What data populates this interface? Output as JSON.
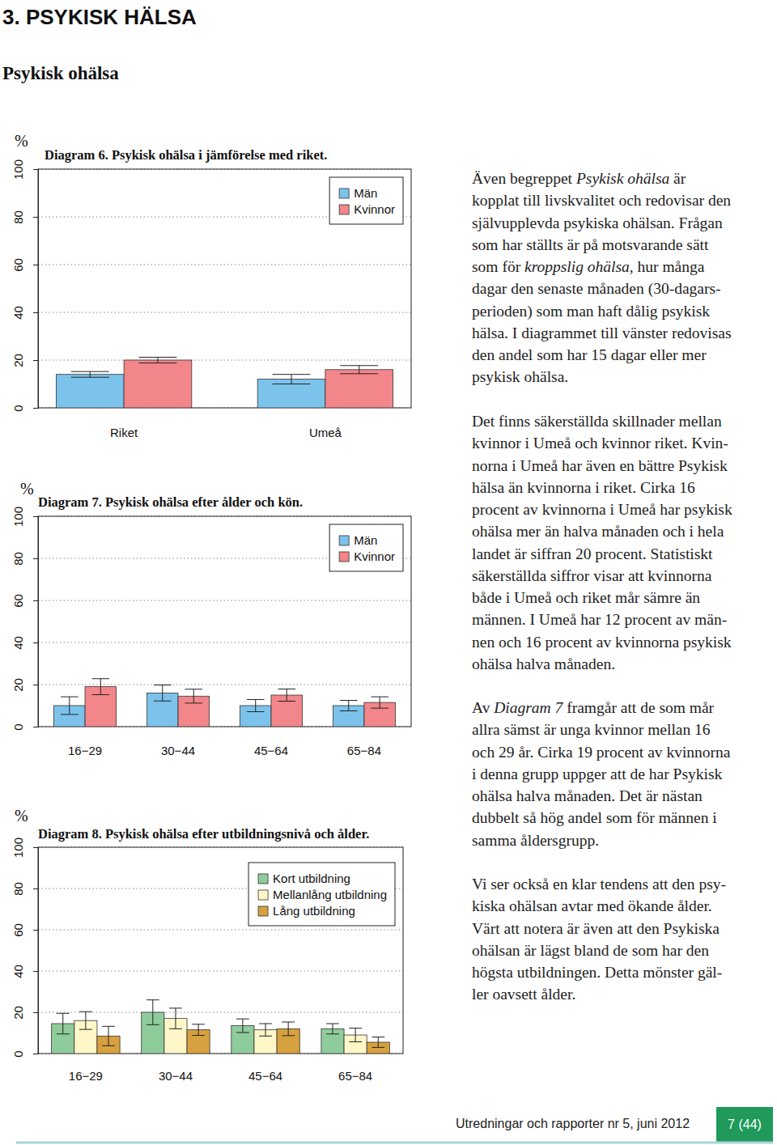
{
  "heading": "3. PSYKISK HÄLSA",
  "subheading": "Psykisk ohälsa",
  "chart_data": [
    {
      "type": "bar",
      "title": "Diagram 6. Psykisk ohälsa i jämförelse med riket.",
      "y_label": "%",
      "categories": [
        "Riket",
        "Umeå"
      ],
      "series": [
        {
          "name": "Män",
          "color": "#7cc3ec",
          "values": [
            14,
            12
          ],
          "errors": [
            1.2,
            2
          ]
        },
        {
          "name": "Kvinnor",
          "color": "#f2868a",
          "values": [
            20,
            16
          ],
          "errors": [
            1.2,
            1.7
          ]
        }
      ],
      "ylim": [
        0,
        100
      ],
      "yticks": [
        0,
        20,
        40,
        60,
        80,
        100
      ],
      "grid": true,
      "legend": "top-right"
    },
    {
      "type": "bar",
      "title": "Diagram 7. Psykisk ohälsa efter ålder och kön.",
      "y_label": "%",
      "categories": [
        "16−29",
        "30−44",
        "45−64",
        "65−84"
      ],
      "series": [
        {
          "name": "Män",
          "color": "#7cc3ec",
          "values": [
            10,
            16,
            10,
            10
          ],
          "errors": [
            4.2,
            3.8,
            2.9,
            2.5
          ]
        },
        {
          "name": "Kvinnor",
          "color": "#f2868a",
          "values": [
            19,
            14.5,
            15,
            11.5
          ],
          "errors": [
            3.8,
            3.3,
            2.9,
            2.7
          ]
        }
      ],
      "ylim": [
        0,
        100
      ],
      "yticks": [
        0,
        20,
        40,
        60,
        80,
        100
      ],
      "grid": true,
      "legend": "top-right"
    },
    {
      "type": "bar",
      "title": "Diagram 8. Psykisk ohälsa efter utbildningsnivå och ålder.",
      "y_label": "%",
      "categories": [
        "16−29",
        "30−44",
        "45−64",
        "65−84"
      ],
      "series": [
        {
          "name": "Kort utbildning",
          "color": "#8fcc9b",
          "values": [
            14.5,
            20,
            13.5,
            12
          ],
          "errors": [
            5,
            6,
            3.3,
            2.5
          ]
        },
        {
          "name": "Mellanlång utbildning",
          "color": "#fff7c8",
          "values": [
            16,
            17,
            11.5,
            9
          ],
          "errors": [
            4.3,
            5,
            3,
            3.3
          ]
        },
        {
          "name": "Lång utbildning",
          "color": "#d7a13f",
          "values": [
            8.5,
            11.5,
            12,
            5.5
          ],
          "errors": [
            4.7,
            2.7,
            3.3,
            2.5
          ]
        }
      ],
      "ylim": [
        0,
        100
      ],
      "yticks": [
        0,
        20,
        40,
        60,
        80,
        100
      ],
      "grid": true,
      "legend": "top-right"
    }
  ],
  "text": [
    {
      "lines": [
        [
          "Även begreppet ",
          {
            "text": "Psykisk ohälsa",
            "style": "italic"
          },
          " är"
        ],
        [
          "kopplat till livskvalitet och redovisar den"
        ],
        [
          "självupplevda psykiska ohälsan. Frågan"
        ],
        [
          "som har ställts är på motsvarande sätt"
        ],
        [
          "som för ",
          {
            "text": "kroppslig ohälsa",
            "style": "italic"
          },
          ", hur många"
        ],
        [
          "dagar den senaste månaden (30-dagars-"
        ],
        [
          "perioden) som man haft dålig psykisk"
        ],
        [
          "hälsa. I diagrammet till vänster redovisas"
        ],
        [
          "den andel som har 15 dagar eller mer"
        ],
        [
          "psykisk ohälsa."
        ]
      ]
    },
    {
      "lines": [
        [
          "Det finns säkerställda skillnader mellan"
        ],
        [
          "kvinnor i Umeå och kvinnor riket. Kvin-"
        ],
        [
          "norna i Umeå har även en bättre Psykisk"
        ],
        [
          "hälsa än kvinnorna i riket. Cirka 16"
        ],
        [
          "procent av kvinnorna i Umeå har psykisk"
        ],
        [
          "ohälsa mer än halva månaden och i hela"
        ],
        [
          "landet är siffran 20 procent. Statistiskt"
        ],
        [
          "säkerställda siffror visar att kvinnorna"
        ],
        [
          "både i Umeå och riket mår sämre än"
        ],
        [
          "männen. I Umeå har 12 procent av män-"
        ],
        [
          "nen och 16 procent av kvinnorna psykisk"
        ],
        [
          "ohälsa halva månaden."
        ]
      ]
    },
    {
      "lines": [
        [
          "Av ",
          {
            "text": "Diagram 7",
            "style": "italic"
          },
          " framgår att de som mår"
        ],
        [
          "allra sämst är unga kvinnor mellan 16"
        ],
        [
          "och 29 år. Cirka 19 procent av kvinnorna"
        ],
        [
          "i denna grupp uppger att de har Psykisk"
        ],
        [
          "ohälsa halva månaden. Det är nästan"
        ],
        [
          "dubbelt så hög andel som för männen i"
        ],
        [
          "samma åldersgrupp."
        ]
      ]
    },
    {
      "lines": [
        [
          "Vi ser också en klar tendens att den psy-"
        ],
        [
          "kiska ohälsan avtar med ökande ålder."
        ],
        [
          "Värt att notera är även att den Psykiska"
        ],
        [
          "ohälsan är lägst bland de som har den"
        ],
        [
          "högsta utbildningen. Detta mönster gäl-"
        ],
        [
          "ler oavsett ålder."
        ]
      ]
    }
  ],
  "footer": {
    "text": "Utredningar och rapporter nr 5, juni 2012",
    "page": "7 (44)"
  }
}
